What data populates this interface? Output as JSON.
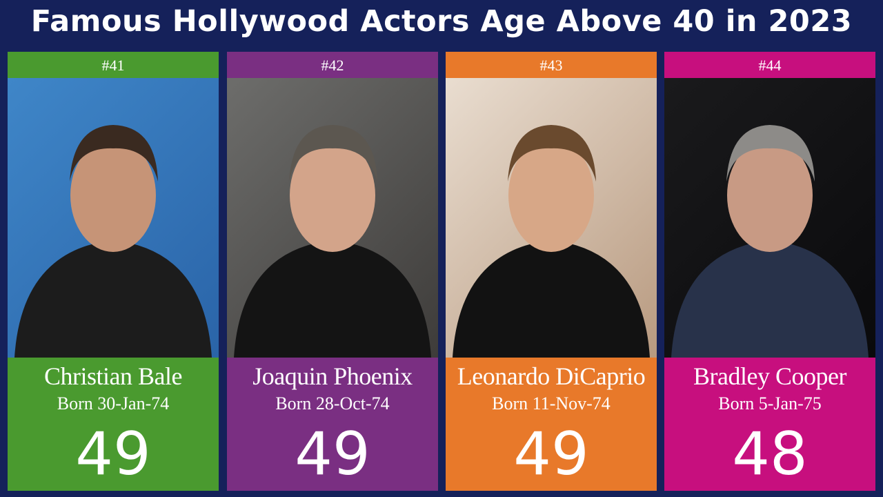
{
  "title": "Famous Hollywood Actors Age Above 40 in 2023",
  "cards": [
    {
      "rank": "#41",
      "name": "Christian Bale",
      "born": "Born 30-Jan-74",
      "age": 49,
      "color": "#4a9a2f"
    },
    {
      "rank": "#42",
      "name": "Joaquin Phoenix",
      "born": "Born 28-Oct-74",
      "age": 49,
      "color": "#7a2f82"
    },
    {
      "rank": "#43",
      "name": "Leonardo DiCaprio",
      "born": "Born 11-Nov-74",
      "age": 49,
      "color": "#e8792a"
    },
    {
      "rank": "#44",
      "name": "Bradley Cooper",
      "born": "Born 5-Jan-75",
      "age": 48,
      "color": "#c70f7e"
    }
  ]
}
